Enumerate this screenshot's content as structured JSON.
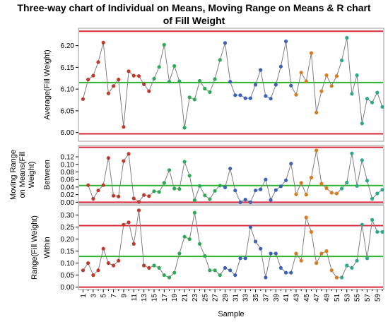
{
  "title_lines": [
    "Three-way chart of Individual on Means, Moving Range on Means & R chart",
    "of Fill Weight"
  ],
  "colors": {
    "limit": "#d6293a",
    "center": "#2db52d",
    "connector": "#808080",
    "group_palette": [
      "#c0392b",
      "#c0392b",
      "#c0392b",
      "#2eaa55",
      "#2eaa55",
      "#2eaa55",
      "#3a63b8",
      "#3a63b8",
      "#3a63b8",
      "#d97c1e",
      "#d97c1e",
      "#2aaa8a",
      "#2aaa8a"
    ]
  },
  "chart_data": [
    {
      "type": "line",
      "title": "",
      "ylabel": "Average(Fill Weight)",
      "ylim": [
        5.98,
        6.24
      ],
      "yticks": [
        "6.00",
        "6.05",
        "6.10",
        "6.15",
        "6.20"
      ],
      "ucl": 6.233,
      "center": 6.115,
      "lcl": 5.997,
      "x": [
        1,
        2,
        3,
        4,
        5,
        6,
        7,
        8,
        9,
        10,
        11,
        12,
        13,
        14,
        15,
        16,
        17,
        18,
        19,
        20,
        21,
        22,
        23,
        24,
        25,
        26,
        27,
        28,
        29,
        30,
        31,
        32,
        33,
        34,
        35,
        36,
        37,
        38,
        39,
        40,
        41,
        42,
        43,
        44,
        45,
        46,
        47,
        48,
        49,
        50,
        51,
        52,
        53,
        54,
        55,
        56,
        57,
        58,
        59,
        60
      ],
      "values": [
        6.077,
        6.122,
        6.131,
        6.162,
        6.207,
        6.09,
        6.107,
        6.122,
        6.013,
        6.141,
        6.131,
        6.13,
        6.111,
        6.095,
        6.124,
        6.151,
        6.202,
        6.117,
        6.153,
        6.118,
        6.011,
        6.081,
        6.076,
        6.119,
        6.101,
        6.093,
        6.123,
        6.167,
        6.206,
        6.117,
        6.086,
        6.086,
        6.079,
        6.079,
        6.11,
        6.144,
        6.084,
        6.078,
        6.11,
        6.152,
        6.21,
        6.108,
        6.087,
        6.138,
        6.118,
        6.183,
        6.046,
        6.095,
        6.132,
        6.107,
        6.13,
        6.166,
        6.218,
        6.089,
        6.132,
        6.021,
        6.078,
        6.069,
        6.092,
        6.059
      ]
    },
    {
      "type": "line",
      "title": "",
      "ylabel_lines": [
        "Moving Range",
        "on Means(Fill",
        "Weight)",
        "Between"
      ],
      "ylim": [
        -0.005,
        0.15
      ],
      "yticks": [
        "0.00",
        "0.02",
        "0.04",
        "0.06",
        "0.08",
        "0.10",
        "0.12"
      ],
      "ucl": 0.145,
      "center": 0.044,
      "lcl": 0.0,
      "x": [
        2,
        3,
        4,
        5,
        6,
        7,
        8,
        9,
        10,
        11,
        12,
        13,
        14,
        15,
        16,
        17,
        18,
        19,
        20,
        21,
        22,
        23,
        24,
        25,
        26,
        27,
        28,
        29,
        30,
        31,
        32,
        33,
        34,
        35,
        36,
        37,
        38,
        39,
        40,
        41,
        42,
        43,
        44,
        45,
        46,
        47,
        48,
        49,
        50,
        51,
        52,
        53,
        54,
        55,
        56,
        57,
        58,
        59,
        60
      ],
      "values": [
        0.045,
        0.009,
        0.031,
        0.045,
        0.117,
        0.017,
        0.015,
        0.109,
        0.128,
        0.01,
        0.001,
        0.019,
        0.016,
        0.029,
        0.027,
        0.051,
        0.085,
        0.036,
        0.035,
        0.107,
        0.07,
        0.005,
        0.043,
        0.018,
        0.008,
        0.03,
        0.044,
        0.039,
        0.089,
        0.031,
        0.0,
        0.007,
        0.0,
        0.031,
        0.034,
        0.06,
        0.006,
        0.032,
        0.042,
        0.058,
        0.102,
        0.021,
        0.051,
        0.02,
        0.065,
        0.137,
        0.049,
        0.037,
        0.025,
        0.023,
        0.036,
        0.052,
        0.129,
        0.043,
        0.111,
        0.057,
        0.009,
        0.023,
        0.033
      ]
    },
    {
      "type": "line",
      "title": "",
      "ylabel_lines": [
        "Range(Fill Weight)",
        "Within"
      ],
      "xlabel": "Sample",
      "ylim": [
        -0.01,
        0.34
      ],
      "yticks": [
        "0.00",
        "0.05",
        "0.10",
        "0.15",
        "0.20",
        "0.25",
        "0.30"
      ],
      "ucl": 0.256,
      "center": 0.128,
      "lcl": 0.0,
      "xticks": [
        "1",
        "3",
        "5",
        "7",
        "9",
        "11",
        "13",
        "15",
        "17",
        "19",
        "21",
        "23",
        "25",
        "27",
        "29",
        "31",
        "33",
        "35",
        "37",
        "39",
        "41",
        "43",
        "45",
        "47",
        "49",
        "51",
        "53",
        "55",
        "57",
        "59"
      ],
      "x": [
        1,
        2,
        3,
        4,
        5,
        6,
        7,
        8,
        9,
        10,
        11,
        12,
        13,
        14,
        15,
        16,
        17,
        18,
        19,
        20,
        21,
        22,
        23,
        24,
        25,
        26,
        27,
        28,
        29,
        30,
        31,
        32,
        33,
        34,
        35,
        36,
        37,
        38,
        39,
        40,
        41,
        42,
        43,
        44,
        45,
        46,
        47,
        48,
        49,
        50,
        51,
        52,
        53,
        54,
        55,
        56,
        57,
        58,
        59,
        60
      ],
      "values": [
        0.07,
        0.1,
        0.05,
        0.07,
        0.16,
        0.1,
        0.09,
        0.11,
        0.26,
        0.27,
        0.18,
        0.32,
        0.09,
        0.08,
        0.09,
        0.08,
        0.05,
        0.04,
        0.06,
        0.14,
        0.21,
        0.2,
        0.31,
        0.18,
        0.13,
        0.07,
        0.07,
        0.05,
        0.08,
        0.07,
        0.05,
        0.12,
        0.12,
        0.25,
        0.19,
        0.16,
        0.04,
        0.14,
        0.14,
        0.08,
        0.06,
        0.06,
        0.14,
        0.11,
        0.29,
        0.23,
        0.1,
        0.14,
        0.15,
        0.07,
        0.04,
        0.04,
        0.09,
        0.08,
        0.11,
        0.26,
        0.12,
        0.28,
        0.23,
        0.23
      ]
    }
  ]
}
